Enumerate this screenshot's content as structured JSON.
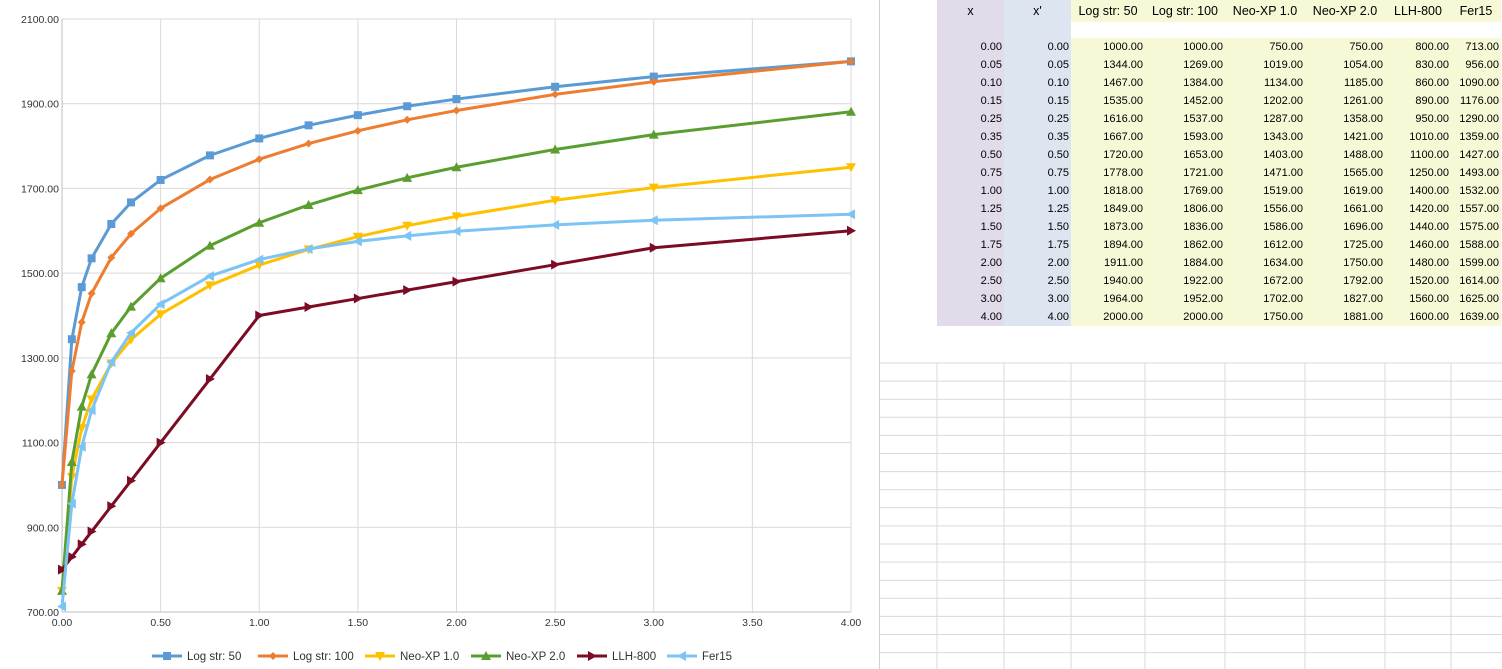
{
  "chart_data": {
    "type": "line",
    "x": [
      0.0,
      0.05,
      0.1,
      0.15,
      0.25,
      0.35,
      0.5,
      0.75,
      1.0,
      1.25,
      1.5,
      1.75,
      2.0,
      2.5,
      3.0,
      4.0
    ],
    "series": [
      {
        "name": "Log str: 50",
        "color": "#5b9bd5",
        "marker": "square",
        "values": [
          1000,
          1344,
          1467,
          1535,
          1616,
          1667,
          1720,
          1778,
          1818,
          1849,
          1873,
          1894,
          1911,
          1940,
          1964,
          2000
        ]
      },
      {
        "name": "Log str: 100",
        "color": "#ed7d31",
        "marker": "diamond",
        "values": [
          1000,
          1269,
          1384,
          1452,
          1537,
          1593,
          1653,
          1721,
          1769,
          1806,
          1836,
          1862,
          1884,
          1922,
          1952,
          2000
        ]
      },
      {
        "name": "Neo-XP 1.0",
        "color": "#ffc000",
        "marker": "triangle-down",
        "values": [
          750,
          1019,
          1134,
          1202,
          1287,
          1343,
          1403,
          1471,
          1519,
          1556,
          1586,
          1612,
          1634,
          1672,
          1702,
          1750
        ]
      },
      {
        "name": "Neo-XP 2.0",
        "color": "#5a9e2f",
        "marker": "triangle-up",
        "values": [
          750,
          1054,
          1185,
          1261,
          1358,
          1421,
          1488,
          1565,
          1619,
          1661,
          1696,
          1725,
          1750,
          1792,
          1827,
          1881
        ]
      },
      {
        "name": "LLH-800",
        "color": "#7b0c23",
        "marker": "triangle-right",
        "values": [
          800,
          830,
          860,
          890,
          950,
          1010,
          1100,
          1250,
          1400,
          1420,
          1440,
          1460,
          1480,
          1520,
          1560,
          1600
        ]
      },
      {
        "name": "Fer15",
        "color": "#7cc4f4",
        "marker": "triangle-left",
        "values": [
          713,
          956,
          1090,
          1176,
          1290,
          1359,
          1427,
          1493,
          1532,
          1557,
          1575,
          1588,
          1599,
          1614,
          1625,
          1639
        ]
      }
    ],
    "xlim": [
      0,
      4
    ],
    "ylim": [
      700,
      2100
    ],
    "x_ticks": [
      "0.00",
      "0.50",
      "1.00",
      "1.50",
      "2.00",
      "2.50",
      "3.00",
      "3.50",
      "4.00"
    ],
    "y_ticks": [
      "700.00",
      "900.00",
      "1100.00",
      "1300.00",
      "1500.00",
      "1700.00",
      "1900.00",
      "2100.00"
    ],
    "grid": true,
    "legend": "bottom"
  },
  "table": {
    "headers": [
      "x",
      "x'",
      "Log str: 50",
      "Log str: 100",
      "Neo-XP 1.0",
      "Neo-XP 2.0",
      "LLH-800",
      "Fer15"
    ],
    "rows": [
      [
        "0.00",
        "0.00",
        "1000.00",
        "1000.00",
        "750.00",
        "750.00",
        "800.00",
        "713.00"
      ],
      [
        "0.05",
        "0.05",
        "1344.00",
        "1269.00",
        "1019.00",
        "1054.00",
        "830.00",
        "956.00"
      ],
      [
        "0.10",
        "0.10",
        "1467.00",
        "1384.00",
        "1134.00",
        "1185.00",
        "860.00",
        "1090.00"
      ],
      [
        "0.15",
        "0.15",
        "1535.00",
        "1452.00",
        "1202.00",
        "1261.00",
        "890.00",
        "1176.00"
      ],
      [
        "0.25",
        "0.25",
        "1616.00",
        "1537.00",
        "1287.00",
        "1358.00",
        "950.00",
        "1290.00"
      ],
      [
        "0.35",
        "0.35",
        "1667.00",
        "1593.00",
        "1343.00",
        "1421.00",
        "1010.00",
        "1359.00"
      ],
      [
        "0.50",
        "0.50",
        "1720.00",
        "1653.00",
        "1403.00",
        "1488.00",
        "1100.00",
        "1427.00"
      ],
      [
        "0.75",
        "0.75",
        "1778.00",
        "1721.00",
        "1471.00",
        "1565.00",
        "1250.00",
        "1493.00"
      ],
      [
        "1.00",
        "1.00",
        "1818.00",
        "1769.00",
        "1519.00",
        "1619.00",
        "1400.00",
        "1532.00"
      ],
      [
        "1.25",
        "1.25",
        "1849.00",
        "1806.00",
        "1556.00",
        "1661.00",
        "1420.00",
        "1557.00"
      ],
      [
        "1.50",
        "1.50",
        "1873.00",
        "1836.00",
        "1586.00",
        "1696.00",
        "1440.00",
        "1575.00"
      ],
      [
        "1.75",
        "1.75",
        "1894.00",
        "1862.00",
        "1612.00",
        "1725.00",
        "1460.00",
        "1588.00"
      ],
      [
        "2.00",
        "2.00",
        "1911.00",
        "1884.00",
        "1634.00",
        "1750.00",
        "1480.00",
        "1599.00"
      ],
      [
        "2.50",
        "2.50",
        "1940.00",
        "1922.00",
        "1672.00",
        "1792.00",
        "1520.00",
        "1614.00"
      ],
      [
        "3.00",
        "3.00",
        "1964.00",
        "1952.00",
        "1702.00",
        "1827.00",
        "1560.00",
        "1625.00"
      ],
      [
        "4.00",
        "4.00",
        "2000.00",
        "2000.00",
        "1750.00",
        "1881.00",
        "1600.00",
        "1639.00"
      ]
    ]
  }
}
